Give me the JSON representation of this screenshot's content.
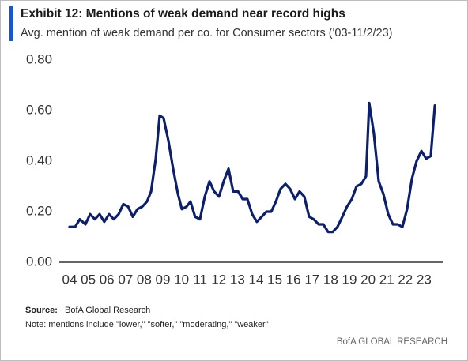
{
  "chart_data": {
    "type": "line",
    "title": "Exhibit 12: Mentions of weak demand near record highs",
    "subtitle": "Avg. mention of weak demand per co. for Consumer sectors ('03-11/2/23)",
    "source_label": "Source:",
    "source": "BofA Global Research",
    "note": "Note: mentions  include \"lower,\" \"softer,\" \"moderating,\" \"weaker\"",
    "credit": "BofA GLOBAL RESEARCH",
    "xlim": [
      2003.45,
      2024.0
    ],
    "ylim": [
      0,
      0.85
    ],
    "yticks": [
      {
        "value": 0,
        "label": "0.00"
      },
      {
        "value": 0.2,
        "label": "0.20"
      },
      {
        "value": 0.4,
        "label": "0.40"
      },
      {
        "value": 0.6,
        "label": "0.60"
      },
      {
        "value": 0.8,
        "label": "0.80"
      }
    ],
    "xticks": [
      {
        "value": 2004,
        "label": "04"
      },
      {
        "value": 2005,
        "label": "05"
      },
      {
        "value": 2006,
        "label": "06"
      },
      {
        "value": 2007,
        "label": "07"
      },
      {
        "value": 2008,
        "label": "08"
      },
      {
        "value": 2009,
        "label": "09"
      },
      {
        "value": 2010,
        "label": "10"
      },
      {
        "value": 2011,
        "label": "11"
      },
      {
        "value": 2012,
        "label": "12"
      },
      {
        "value": 2013,
        "label": "13"
      },
      {
        "value": 2014,
        "label": "14"
      },
      {
        "value": 2015,
        "label": "15"
      },
      {
        "value": 2016,
        "label": "16"
      },
      {
        "value": 2017,
        "label": "17"
      },
      {
        "value": 2018,
        "label": "18"
      },
      {
        "value": 2019,
        "label": "19"
      },
      {
        "value": 2020,
        "label": "20"
      },
      {
        "value": 2021,
        "label": "21"
      },
      {
        "value": 2022,
        "label": "22"
      },
      {
        "value": 2023,
        "label": "23"
      }
    ],
    "grid": false,
    "color": "#0b1f6e",
    "x": [
      2004.0,
      2004.3,
      2004.55,
      2004.85,
      2005.1,
      2005.36,
      2005.61,
      2005.86,
      2006.12,
      2006.37,
      2006.63,
      2006.88,
      2007.14,
      2007.39,
      2007.64,
      2007.9,
      2008.15,
      2008.37,
      2008.62,
      2008.83,
      2009.04,
      2009.3,
      2009.55,
      2009.81,
      2010.02,
      2010.27,
      2010.48,
      2010.73,
      2010.99,
      2011.25,
      2011.5,
      2011.75,
      2012.01,
      2012.26,
      2012.52,
      2012.77,
      2013.03,
      2013.28,
      2013.53,
      2013.79,
      2014.04,
      2014.3,
      2014.55,
      2014.81,
      2015.06,
      2015.31,
      2015.57,
      2015.82,
      2016.08,
      2016.33,
      2016.58,
      2016.84,
      2017.09,
      2017.35,
      2017.6,
      2017.86,
      2018.11,
      2018.36,
      2018.62,
      2018.87,
      2019.13,
      2019.38,
      2019.64,
      2019.89,
      2020.06,
      2020.31,
      2020.57,
      2020.82,
      2021.08,
      2021.33,
      2021.58,
      2021.84,
      2022.09,
      2022.35,
      2022.6,
      2022.86,
      2023.11,
      2023.36,
      2023.58
    ],
    "values": [
      0.14,
      0.14,
      0.17,
      0.15,
      0.19,
      0.17,
      0.19,
      0.16,
      0.19,
      0.17,
      0.19,
      0.23,
      0.22,
      0.18,
      0.21,
      0.22,
      0.24,
      0.28,
      0.41,
      0.58,
      0.57,
      0.48,
      0.37,
      0.27,
      0.21,
      0.22,
      0.24,
      0.18,
      0.17,
      0.26,
      0.32,
      0.28,
      0.26,
      0.32,
      0.37,
      0.28,
      0.28,
      0.25,
      0.25,
      0.19,
      0.16,
      0.18,
      0.2,
      0.2,
      0.24,
      0.29,
      0.31,
      0.29,
      0.25,
      0.28,
      0.26,
      0.18,
      0.17,
      0.15,
      0.15,
      0.12,
      0.12,
      0.14,
      0.18,
      0.22,
      0.25,
      0.3,
      0.31,
      0.34,
      0.63,
      0.51,
      0.32,
      0.27,
      0.19,
      0.15,
      0.15,
      0.14,
      0.21,
      0.33,
      0.4,
      0.44,
      0.41,
      0.42,
      0.62
    ]
  }
}
